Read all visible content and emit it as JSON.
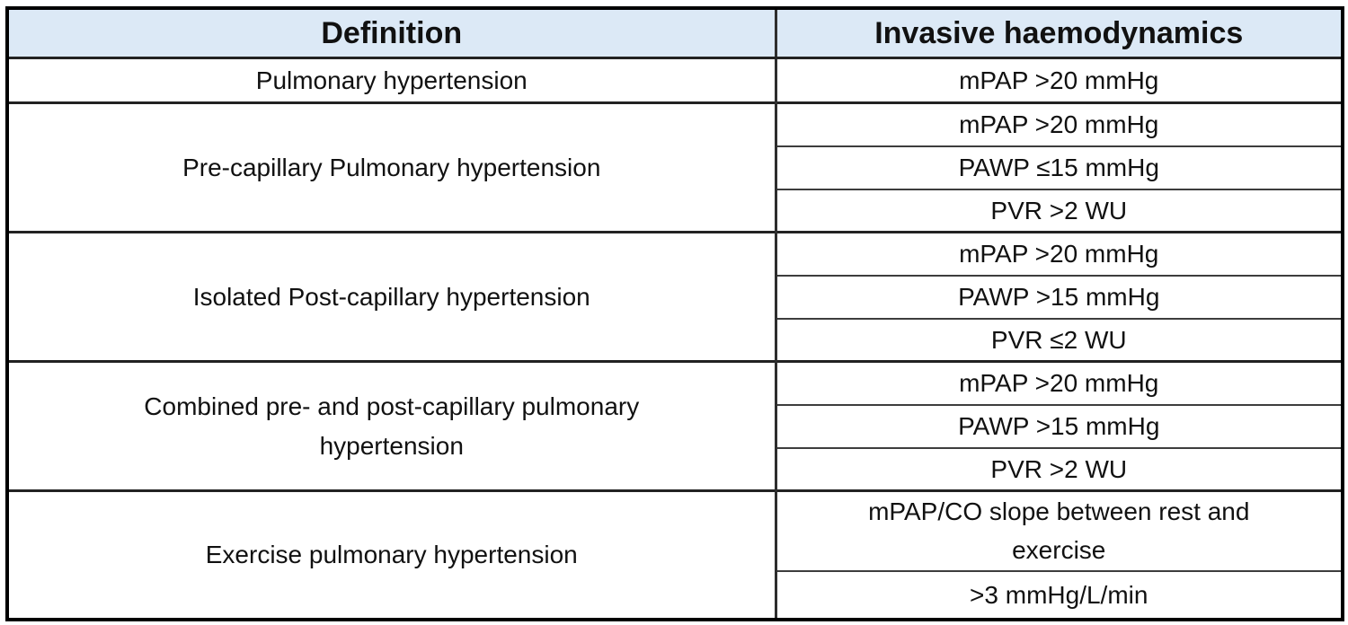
{
  "figure": {
    "type": "table",
    "description": "Definitions of pulmonary hypertension with invasive haemodynamic criteria"
  },
  "colors": {
    "header_bg": "#dce9f6",
    "outer_border": "#000000",
    "group_divider": "#222222",
    "sub_divider": "#3d3d3d",
    "text": "#111111",
    "page_bg": "#ffffff"
  },
  "table": {
    "header": {
      "definition": "Definition",
      "haemodynamics": "Invasive haemodynamics"
    },
    "rows": [
      {
        "definition": "Pulmonary hypertension",
        "criteria": [
          "mPAP >20 mmHg"
        ]
      },
      {
        "definition": "Pre-capillary Pulmonary hypertension",
        "criteria": [
          "mPAP >20 mmHg",
          "PAWP ≤15 mmHg",
          "PVR >2 WU"
        ]
      },
      {
        "definition": "Isolated Post-capillary hypertension",
        "criteria": [
          "mPAP >20 mmHg",
          "PAWP >15 mmHg",
          "PVR ≤2 WU"
        ]
      },
      {
        "definition": "Combined pre- and post-capillary pulmonary hypertension",
        "criteria": [
          "mPAP >20 mmHg",
          "PAWP >15 mmHg",
          "PVR >2 WU"
        ]
      },
      {
        "definition": "Exercise pulmonary hypertension",
        "criteria": [
          "mPAP/CO slope between rest and exercise",
          ">3 mmHg/L/min"
        ]
      }
    ]
  }
}
